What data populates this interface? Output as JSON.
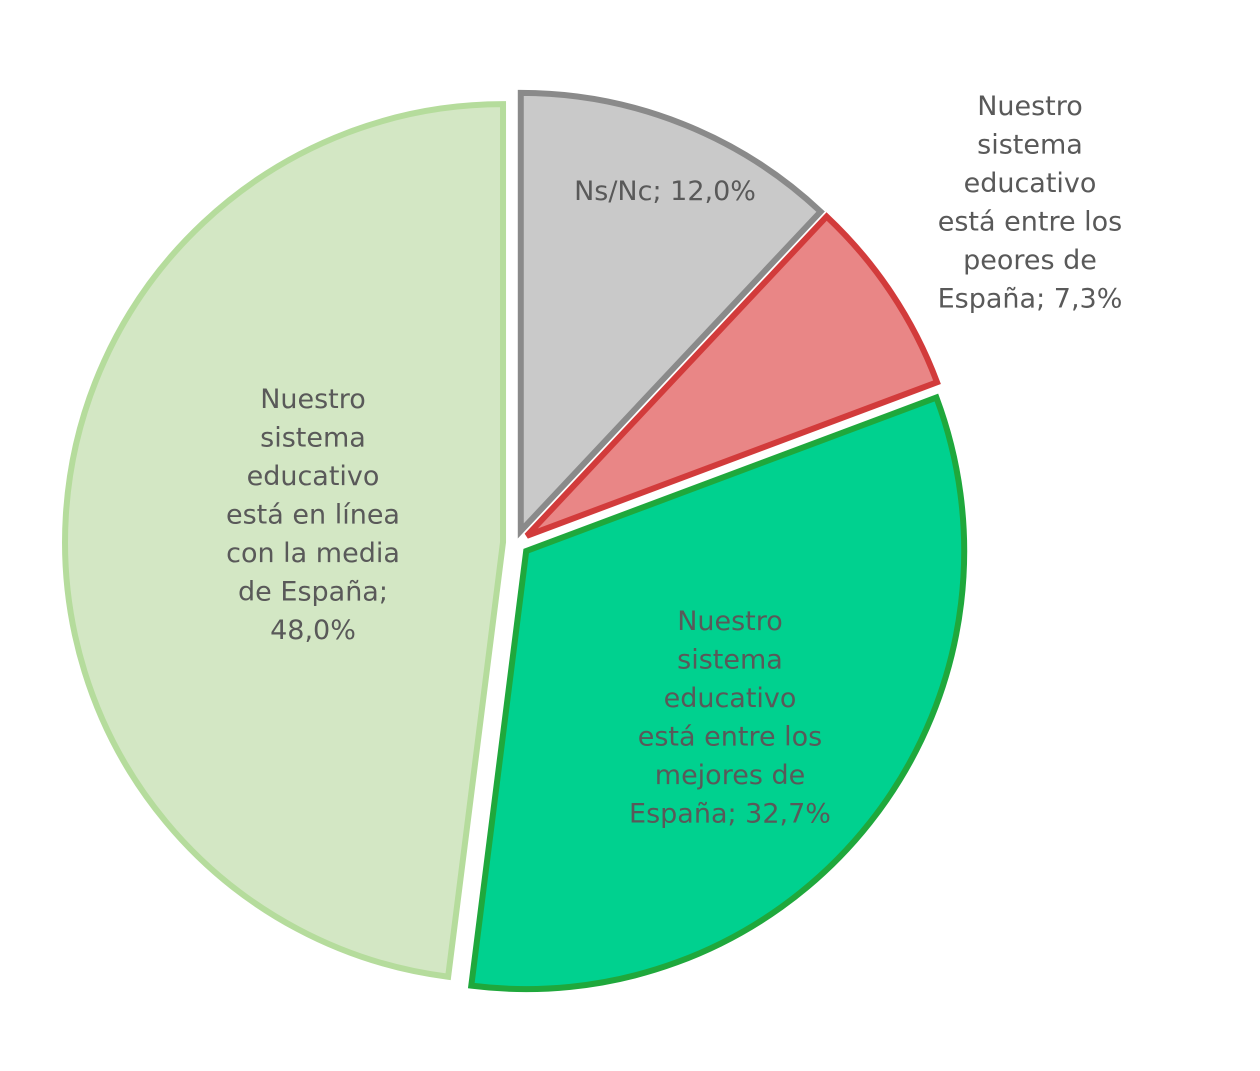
{
  "chart_data": {
    "type": "pie",
    "title": "",
    "start_angle_deg": 0,
    "direction": "clockwise",
    "exploded": true,
    "slices": [
      {
        "name": "Ns/Nc",
        "value": 12.0,
        "label_lines": [
          "Ns/Nc; 12,0%"
        ],
        "fill": "#c9c9c9",
        "stroke": "#8a8a8a",
        "label_position": "inside"
      },
      {
        "name": "Nuestro sistema educativo está entre los peores de España",
        "value": 7.3,
        "label_lines": [
          "Nuestro",
          "sistema",
          "educativo",
          "está entre los",
          "peores de",
          "España; 7,3%"
        ],
        "fill": "#e98686",
        "stroke": "#d23b3b",
        "label_position": "outside"
      },
      {
        "name": "Nuestro sistema educativo está entre los mejores de España",
        "value": 32.7,
        "label_lines": [
          "Nuestro",
          "sistema",
          "educativo",
          "está entre los",
          "mejores de",
          "España; 32,7%"
        ],
        "fill": "#00d18f",
        "stroke": "#1fa83c",
        "label_position": "inside"
      },
      {
        "name": "Nuestro sistema educativo está en línea con la media de España",
        "value": 48.0,
        "label_lines": [
          "Nuestro",
          "sistema",
          "educativo",
          "está en línea",
          "con la media",
          "de España;",
          "48,0%"
        ],
        "fill": "#d3e7c4",
        "stroke": "#b5dc9c",
        "label_position": "inside"
      }
    ]
  }
}
